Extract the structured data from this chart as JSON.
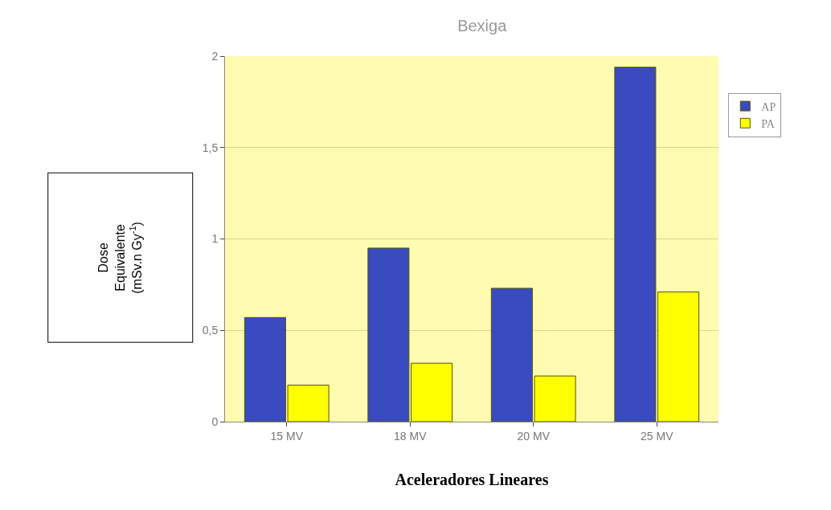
{
  "chart_data": {
    "type": "bar",
    "title": "Bexiga",
    "xlabel": "Aceleradores Lineares",
    "ylabel": "Dose Equivalente (mSv.n Gy$^{-1}$)",
    "categories": [
      "15 MV",
      "18 MV",
      "20 MV",
      "25 MV"
    ],
    "series": [
      {
        "name": "AP",
        "color": "#3a4bbf",
        "values": [
          0.57,
          0.95,
          0.73,
          1.94
        ]
      },
      {
        "name": "PA",
        "color": "#ffff00",
        "values": [
          0.2,
          0.32,
          0.25,
          0.71
        ]
      }
    ],
    "ylim": [
      0,
      2
    ],
    "yticks": [
      0,
      {
        "value": 0.5,
        "label": "0,5"
      },
      1,
      {
        "value": 1.5,
        "label": "1,5"
      },
      2
    ],
    "grid": "y",
    "legend": "top right"
  }
}
